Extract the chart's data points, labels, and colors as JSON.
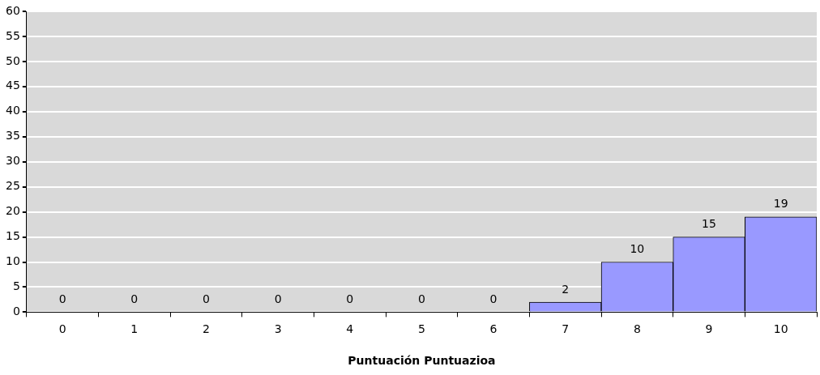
{
  "chart_data": {
    "type": "bar",
    "xlabel": "Puntuación Puntuazioa",
    "categories": [
      "0",
      "1",
      "2",
      "3",
      "4",
      "5",
      "6",
      "7",
      "8",
      "9",
      "10"
    ],
    "values": [
      0,
      0,
      0,
      0,
      0,
      0,
      0,
      2,
      10,
      15,
      19
    ],
    "color": "#9999ff",
    "ylim": [
      0,
      60
    ],
    "yticks": [
      0,
      5,
      10,
      15,
      20,
      25,
      30,
      35,
      40,
      45,
      50,
      55,
      60
    ],
    "grid": "y",
    "data_labels": true,
    "legend": false
  }
}
